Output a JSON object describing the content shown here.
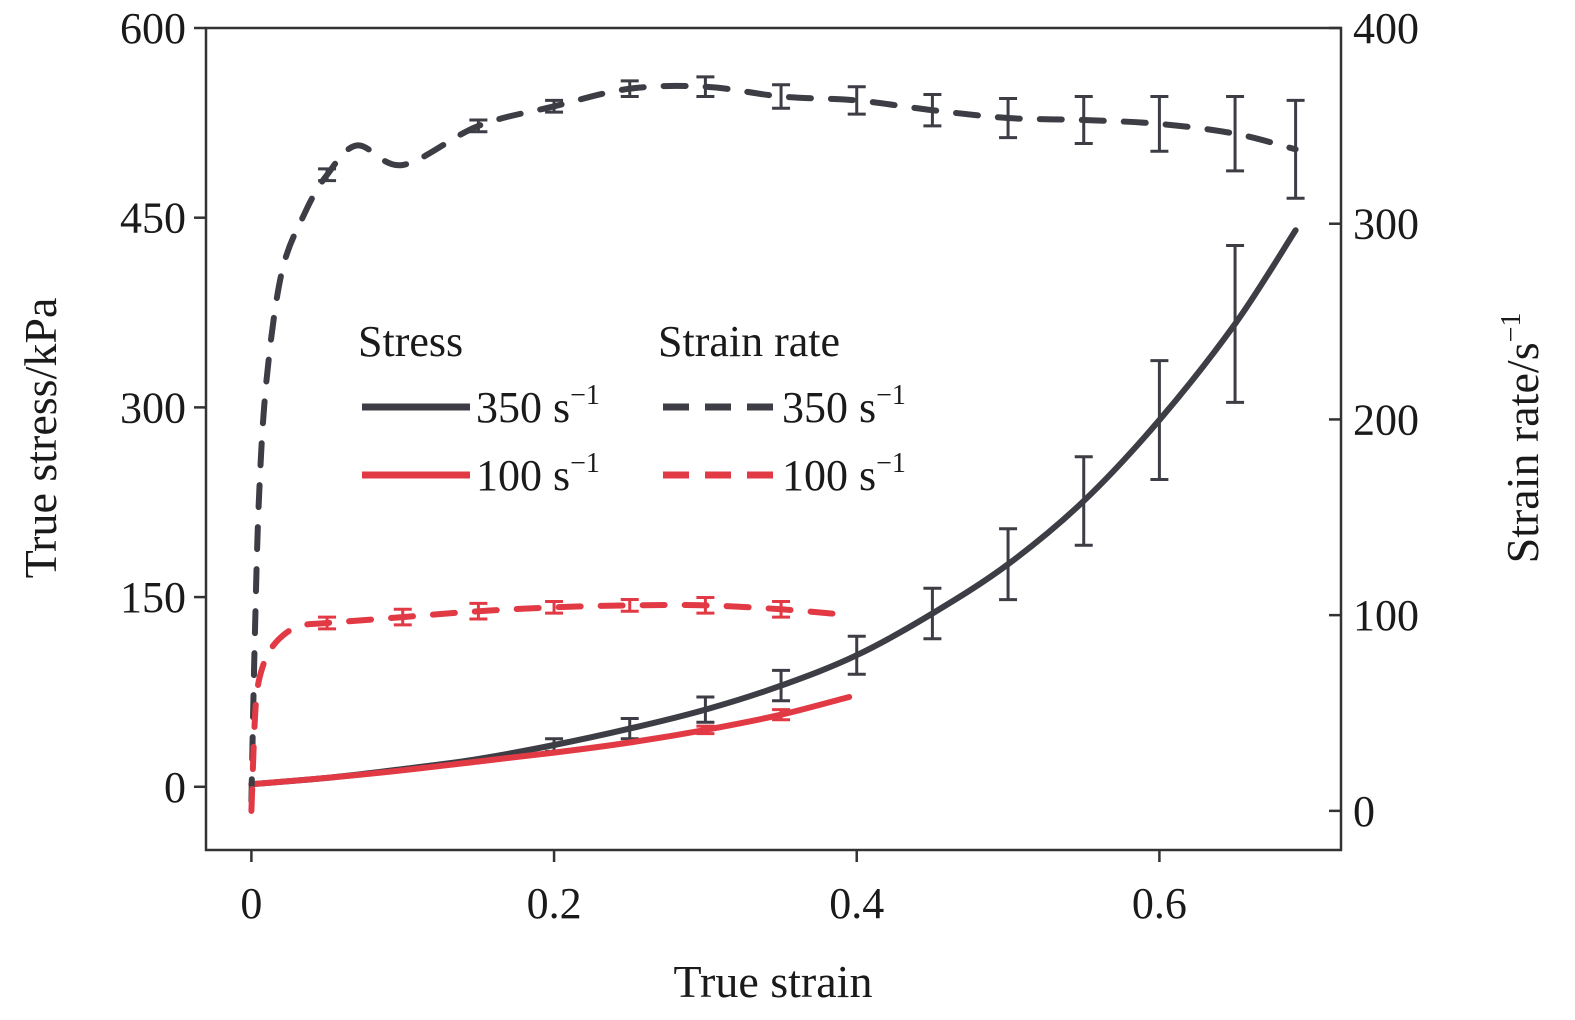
{
  "chart_data": {
    "type": "line",
    "xlabel": "True strain",
    "ylabel_left": "True stress/kPa",
    "ylabel_right_base": "Strain rate/s",
    "ylabel_right_sup": "−1",
    "xlim": [
      -0.03,
      0.72
    ],
    "ylim_left": [
      -50,
      600
    ],
    "ylim_right": [
      -20,
      400
    ],
    "x_ticks": [
      0,
      0.2,
      0.4,
      0.6
    ],
    "x_tick_labels": [
      "0",
      "0.2",
      "0.4",
      "0.6"
    ],
    "y_left_ticks": [
      0,
      150,
      300,
      450,
      600
    ],
    "y_left_tick_labels": [
      "0",
      "150",
      "300",
      "450",
      "600"
    ],
    "y_right_ticks": [
      0,
      100,
      200,
      300,
      400
    ],
    "y_right_tick_labels": [
      "0",
      "100",
      "200",
      "300",
      "400"
    ],
    "legend": {
      "placement": "center",
      "header_stress": "Stress",
      "header_rate": "Strain rate",
      "entries": [
        {
          "label": "350 s",
          "sup": "−1",
          "color": "#3d3d45",
          "style": "solid"
        },
        {
          "label": "100 s",
          "sup": "−1",
          "color": "#e23a45",
          "style": "solid"
        },
        {
          "label": "350 s",
          "sup": "−1",
          "color": "#3d3d45",
          "style": "dashed"
        },
        {
          "label": "100 s",
          "sup": "−1",
          "color": "#e23a45",
          "style": "dashed"
        }
      ]
    },
    "series": [
      {
        "kind": "stress",
        "rate": "350",
        "axis": "left",
        "color": "#3d3d45",
        "style": "solid",
        "x": [
          0,
          0.05,
          0.1,
          0.15,
          0.2,
          0.25,
          0.3,
          0.35,
          0.4,
          0.45,
          0.5,
          0.55,
          0.6,
          0.65,
          0.69
        ],
        "y": [
          2,
          7,
          14,
          22,
          33,
          46,
          61,
          80,
          104,
          137,
          176,
          226,
          290,
          366,
          440
        ],
        "errors_x": [
          0.2,
          0.25,
          0.3,
          0.35,
          0.4,
          0.45,
          0.5,
          0.55,
          0.6,
          0.65
        ],
        "errors_y": [
          33,
          46,
          61,
          80,
          104,
          137,
          176,
          226,
          290,
          366
        ],
        "errors_e": [
          5,
          8,
          10,
          12,
          15,
          20,
          28,
          35,
          47,
          62
        ]
      },
      {
        "kind": "stress",
        "rate": "100",
        "axis": "left",
        "color": "#e23a45",
        "style": "solid",
        "x": [
          0,
          0.05,
          0.1,
          0.15,
          0.2,
          0.25,
          0.3,
          0.35,
          0.395
        ],
        "y": [
          2,
          7,
          13,
          20,
          27,
          35,
          45,
          57,
          71
        ],
        "errors_x": [
          0.3,
          0.35
        ],
        "errors_y": [
          45,
          57
        ],
        "errors_e": [
          3,
          4
        ]
      },
      {
        "kind": "strain_rate",
        "rate": "350",
        "axis": "right",
        "color": "#3d3d45",
        "style": "dashed",
        "x": [
          0,
          0.002,
          0.005,
          0.01,
          0.02,
          0.035,
          0.05,
          0.07,
          0.1,
          0.15,
          0.2,
          0.25,
          0.3,
          0.35,
          0.4,
          0.45,
          0.5,
          0.55,
          0.6,
          0.65,
          0.69
        ],
        "y": [
          5,
          80,
          160,
          220,
          275,
          305,
          325,
          340,
          330,
          350,
          360,
          369,
          370,
          365,
          363,
          358,
          354,
          353,
          351,
          346,
          338
        ],
        "errors_x": [
          0.05,
          0.15,
          0.2,
          0.25,
          0.3,
          0.35,
          0.4,
          0.45,
          0.5,
          0.55,
          0.6,
          0.65,
          0.69
        ],
        "errors_y": [
          325,
          350,
          360,
          369,
          370,
          365,
          363,
          358,
          354,
          353,
          351,
          346,
          338
        ],
        "errors_e": [
          3,
          3,
          3,
          4,
          5,
          6,
          7,
          8,
          10,
          12,
          14,
          19,
          25
        ]
      },
      {
        "kind": "strain_rate",
        "rate": "100",
        "axis": "right",
        "color": "#e23a45",
        "style": "dashed",
        "x": [
          0,
          0.003,
          0.008,
          0.015,
          0.025,
          0.035,
          0.05,
          0.1,
          0.15,
          0.2,
          0.25,
          0.3,
          0.35,
          0.395
        ],
        "y": [
          0,
          55,
          75,
          85,
          92,
          95,
          96,
          99,
          102,
          104,
          105,
          105,
          103,
          100
        ],
        "errors_x": [
          0.05,
          0.1,
          0.15,
          0.2,
          0.25,
          0.3,
          0.35
        ],
        "errors_y": [
          96,
          99,
          102,
          104,
          105,
          105,
          103
        ],
        "errors_e": [
          3,
          4,
          4,
          3,
          3,
          4,
          4
        ]
      }
    ]
  }
}
